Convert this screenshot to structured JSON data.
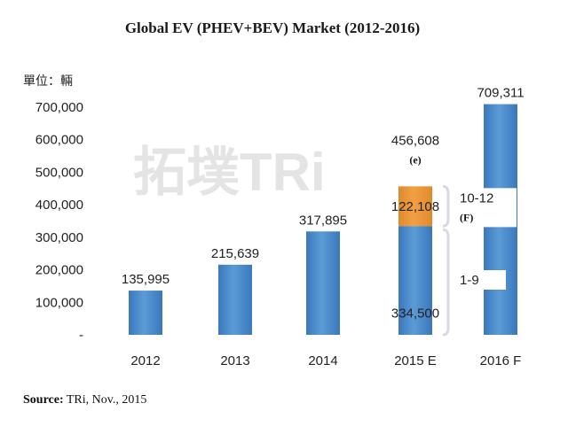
{
  "title": "Global EV (PHEV+BEV) Market (2012-2016)",
  "unit_label": "單位：輛",
  "watermark": "拓墣TRi",
  "source_label": "Source:",
  "source_text": " TRi, Nov., 2015",
  "colors": {
    "bar": "#5b9bd5",
    "bar_dark": "#3a78bd",
    "stack_top": "#f2a045",
    "label_blue": "#4472c4",
    "bracket": "#d9d9e6"
  },
  "chart_data": {
    "type": "bar",
    "stacked": true,
    "categories": [
      "2012",
      "2013",
      "2014",
      "2015 E",
      "2016 F"
    ],
    "series": [
      {
        "values": [
          135995,
          215639,
          317895,
          334500,
          709311
        ]
      },
      {
        "values": [
          0,
          0,
          0,
          122108,
          0
        ]
      }
    ],
    "ylim": [
      0,
      700000
    ],
    "yticks": [
      "-",
      "100,000",
      "200,000",
      "300,000",
      "400,000",
      "500,000",
      "600,000",
      "700,000"
    ],
    "data_labels": [
      "135,995",
      "215,639",
      "317,895",
      "",
      "709,311"
    ],
    "total_label_2015": "456,608",
    "total_note_2015": "(e)",
    "stack_labels_2015": [
      "334,500",
      "122,108"
    ],
    "annotations": [
      {
        "text": "10-12",
        "note": "(F)"
      },
      {
        "text": "1-9"
      }
    ],
    "grid": false
  }
}
